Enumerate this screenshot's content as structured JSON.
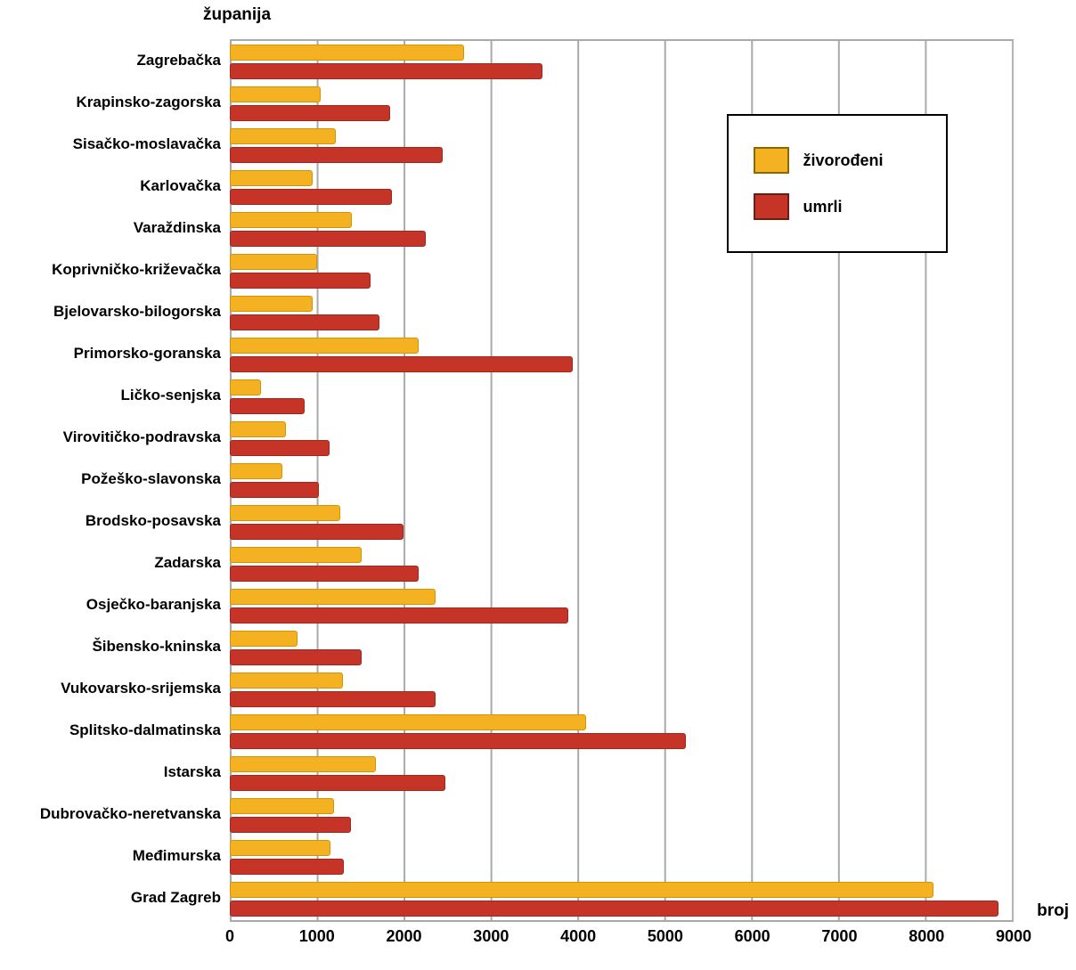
{
  "chart_data": {
    "type": "bar",
    "orientation": "horizontal",
    "y_axis_title": "županija",
    "x_axis_title": "broj",
    "xlim": [
      0,
      9000
    ],
    "x_ticks": [
      0,
      1000,
      2000,
      3000,
      4000,
      5000,
      6000,
      7000,
      8000,
      9000
    ],
    "grid": "vertical",
    "legend_position": "top-right-inside",
    "categories": [
      "Zagrebačka",
      "Krapinsko-zagorska",
      "Sisačko-moslavačka",
      "Karlovačka",
      "Varaždinska",
      "Koprivničko-križevačka",
      "Bjelovarsko-bilogorska",
      "Primorsko-goranska",
      "Ličko-senjska",
      "Virovitičko-podravska",
      "Požeško-slavonska",
      "Brodsko-posavska",
      "Zadarska",
      "Osječko-baranjska",
      "Šibensko-kninska",
      "Vukovarsko-srijemska",
      "Splitsko-dalmatinska",
      "Istarska",
      "Dubrovačko-neretvanska",
      "Međimurska",
      "Grad Zagreb"
    ],
    "series": [
      {
        "name": "živorođeni",
        "color": "#f4b223",
        "values": [
          2700,
          1050,
          1220,
          950,
          1400,
          1000,
          950,
          2170,
          360,
          650,
          600,
          1270,
          1520,
          2370,
          780,
          1300,
          4100,
          1680,
          1200,
          1160,
          8100
        ]
      },
      {
        "name": "umrli",
        "color": "#c63427",
        "values": [
          3600,
          1850,
          2450,
          1870,
          2250,
          1620,
          1720,
          3950,
          860,
          1150,
          1020,
          2000,
          2170,
          3900,
          1520,
          2370,
          5250,
          2480,
          1390,
          1310,
          8850
        ]
      }
    ]
  }
}
